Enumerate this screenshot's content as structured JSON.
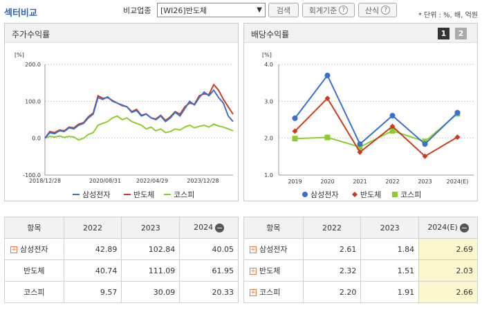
{
  "header": {
    "title": "섹터비교",
    "compare_label": "비교업종",
    "select_value": "[WI26]반도체",
    "search_label": "검색",
    "accounting_label": "회계기준",
    "formula_label": "산식",
    "unit_text": "* 단위 : %, 배, 억원"
  },
  "colors": {
    "samsung": "#3a6fd0",
    "semi": "#cc3b1e",
    "kospi": "#8ccc2e"
  },
  "stock_panel": {
    "title": "주가수익률",
    "y_unit": "[%]",
    "legend": [
      "삼성전자",
      "반도체",
      "코스피"
    ]
  },
  "dividend_panel": {
    "title": "배당수익률",
    "page1": "1",
    "page2": "2",
    "y_unit": "[%]",
    "legend": [
      "삼성전자",
      "반도체",
      "코스피"
    ]
  },
  "chart_data": [
    {
      "type": "line",
      "title": "주가수익률",
      "ylabel": "[%]",
      "ylim": [
        -100,
        200
      ],
      "yticks": [
        "200.0",
        "100.0",
        "0.0",
        "-100.0"
      ],
      "xticks": [
        "2018/12/28",
        "2020/08/31",
        "2022/04/29",
        "2023/12/28"
      ],
      "series": [
        {
          "name": "삼성전자",
          "values": [
            0,
            15,
            12,
            20,
            18,
            28,
            25,
            35,
            40,
            55,
            65,
            110,
            105,
            112,
            100,
            95,
            90,
            85,
            70,
            75,
            60,
            65,
            55,
            50,
            60,
            45,
            55,
            70,
            60,
            80,
            100,
            90,
            110,
            125,
            115,
            130,
            110,
            95,
            60,
            45
          ]
        },
        {
          "name": "반도체",
          "values": [
            0,
            18,
            15,
            22,
            20,
            30,
            28,
            38,
            42,
            58,
            68,
            115,
            108,
            110,
            102,
            95,
            88,
            85,
            72,
            78,
            62,
            66,
            55,
            52,
            62,
            48,
            58,
            72,
            65,
            85,
            95,
            92,
            115,
            120,
            118,
            145,
            130,
            105,
            85,
            65
          ]
        },
        {
          "name": "코스피",
          "values": [
            0,
            5,
            3,
            6,
            2,
            5,
            3,
            -5,
            0,
            10,
            15,
            35,
            40,
            45,
            55,
            60,
            50,
            55,
            45,
            40,
            35,
            25,
            30,
            20,
            25,
            15,
            18,
            25,
            22,
            30,
            35,
            28,
            32,
            35,
            30,
            38,
            33,
            30,
            25,
            20
          ]
        }
      ]
    },
    {
      "type": "line",
      "title": "배당수익률",
      "ylabel": "[%]",
      "ylim": [
        1.0,
        4.0
      ],
      "yticks": [
        "4.0",
        "3.0",
        "2.0",
        "1.0"
      ],
      "categories": [
        "2019",
        "2020",
        "2021",
        "2022",
        "2023",
        "2024(E)"
      ],
      "series": [
        {
          "name": "삼성전자",
          "values": [
            2.54,
            3.7,
            1.84,
            2.61,
            1.84,
            2.69
          ]
        },
        {
          "name": "반도체",
          "values": [
            2.19,
            3.08,
            1.62,
            2.32,
            1.51,
            2.03
          ]
        },
        {
          "name": "코스피",
          "values": [
            1.99,
            2.02,
            1.76,
            2.2,
            1.91,
            2.66
          ]
        }
      ]
    }
  ],
  "stock_table": {
    "headers": [
      "항목",
      "2022",
      "2023",
      "2024"
    ],
    "rows": [
      {
        "name": "삼성전자",
        "v": [
          "42.89",
          "102.84",
          "40.05"
        ]
      },
      {
        "name": "반도체",
        "v": [
          "40.74",
          "111.09",
          "61.95"
        ]
      },
      {
        "name": "코스피",
        "v": [
          "9.57",
          "30.09",
          "20.33"
        ]
      }
    ]
  },
  "div_table": {
    "headers": [
      "항목",
      "2022",
      "2023",
      "2024(E)"
    ],
    "rows": [
      {
        "name": "삼성전자",
        "v": [
          "2.61",
          "1.84",
          "2.69"
        ]
      },
      {
        "name": "반도체",
        "v": [
          "2.32",
          "1.51",
          "2.03"
        ]
      },
      {
        "name": "코스피",
        "v": [
          "2.20",
          "1.91",
          "2.66"
        ]
      }
    ]
  }
}
